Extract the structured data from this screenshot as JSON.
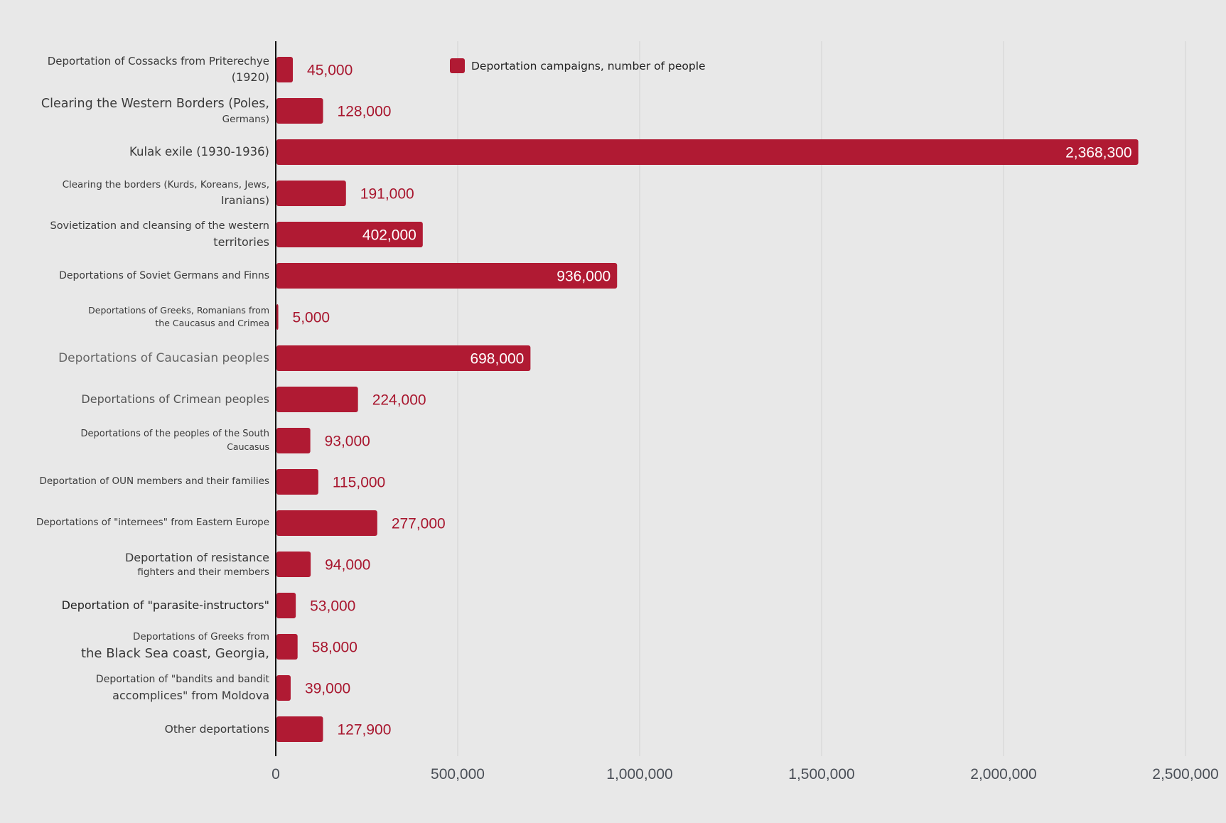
{
  "chart_data": {
    "type": "bar",
    "orientation": "horizontal",
    "title": "",
    "xlabel": "",
    "ylabel": "",
    "xlim": [
      0,
      2500000
    ],
    "grid": true,
    "legend": {
      "placement": "top-center",
      "entries": [
        "Deportation campaigns, number of people"
      ]
    },
    "x_ticks": [
      0,
      500000,
      1000000,
      1500000,
      2000000,
      2500000
    ],
    "x_tick_labels": [
      "0",
      "500,000",
      "1,000,000",
      "1,500,000",
      "2,000,000",
      "2,500,000"
    ],
    "categories": [
      "Deportation of Cossacks from Priterechye (1920)",
      "Clearing the Western Borders (Poles, Germans)",
      "Kulak exile (1930-1936)",
      "Clearing the borders (Kurds, Koreans, Jews, Iranians)",
      "Sovietization and cleansing of the western territories",
      "Deportations of Soviet Germans and Finns",
      "Deportations of Greeks, Romanians from the Caucasus and Crimea",
      "Deportations of Caucasian peoples",
      "Deportations of Crimean peoples",
      "Deportations of the peoples of the South Caucasus",
      "Deportation of OUN members and their families",
      "Deportations of \"internees\" from Eastern Europe",
      "Deportation of resistance fighters and their members",
      "Deportation of \"parasite-instructors\"",
      "Deportations of Greeks from the Black Sea coast, Georgia,",
      "Deportation of \"bandits and bandit accomplices\" from Moldova",
      "Other deportations"
    ],
    "series": [
      {
        "name": "Deportation campaigns, number of people",
        "color": "#b01a33",
        "values": [
          45000,
          128000,
          2368300,
          191000,
          402000,
          936000,
          5000,
          698000,
          224000,
          93000,
          115000,
          277000,
          94000,
          53000,
          58000,
          39000,
          127900
        ]
      }
    ],
    "data_labels": [
      "45,000",
      "128,000",
      "2,368,300",
      "191,000",
      "402,000",
      "936,000",
      "5,000",
      "698,000",
      "224,000",
      "93,000",
      "115,000",
      "277,000",
      "94,000",
      "53,000",
      "58,000",
      "39,000",
      "127,900"
    ]
  },
  "labels": [
    {
      "l1": "Deportation of Cossacks from Priterechye",
      "l2": "(1920)"
    },
    {
      "l1": "Clearing the Western Borders (Poles,",
      "l2": "Germans)"
    },
    {
      "l1": "Kulak exile (1930-1936)",
      "l2": ""
    },
    {
      "l1": "Clearing the borders (Kurds, Koreans, Jews,",
      "l2": "Iranians)"
    },
    {
      "l1": "Sovietization and cleansing of the western",
      "l2": "territories"
    },
    {
      "l1": "Deportations of Soviet Germans and Finns",
      "l2": ""
    },
    {
      "l1": "Deportations of Greeks, Romanians from",
      "l2": "the Caucasus and Crimea"
    },
    {
      "l1": "Deportations of Caucasian peoples",
      "l2": ""
    },
    {
      "l1": "Deportations of Crimean peoples",
      "l2": ""
    },
    {
      "l1": "Deportations of the peoples of the South",
      "l2": "Caucasus"
    },
    {
      "l1": "Deportation of OUN members and their families",
      "l2": ""
    },
    {
      "l1": "Deportations of \"internees\" from Eastern Europe",
      "l2": ""
    },
    {
      "l1": "Deportation of resistance",
      "l2": "fighters and their members"
    },
    {
      "l1": "Deportation of \"parasite-instructors\"",
      "l2": ""
    },
    {
      "l1": "Deportations of Greeks from",
      "l2": "the Black Sea coast, Georgia,"
    },
    {
      "l1": "Deportation of \"bandits and bandit",
      "l2": "accomplices\" from Moldova"
    },
    {
      "l1": "Other deportations",
      "l2": ""
    }
  ],
  "legend": {
    "label": "Deportation campaigns, number of people",
    "color": "#b01a33"
  },
  "colors": {
    "bar": "#b01a33",
    "label_outside": "#a8162e",
    "label_inside": "#ffffff",
    "grid": "#d6d6d6",
    "axis": "#111111",
    "background": "#e8e8e8"
  }
}
